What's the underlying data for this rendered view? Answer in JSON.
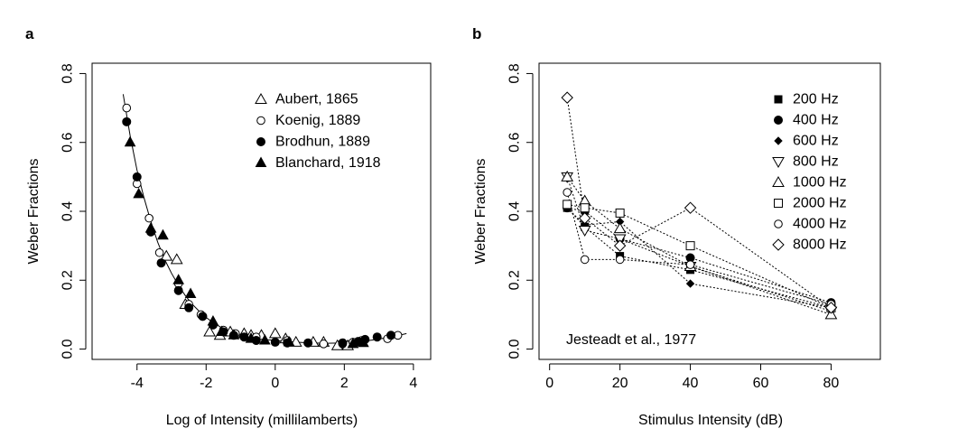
{
  "chart_data": [
    {
      "panel_label": "a",
      "type": "scatter",
      "xlabel": "Log of Intensity (millilamberts)",
      "ylabel": "Weber Fractions",
      "xlim": [
        -5.3,
        4.5
      ],
      "ylim": [
        -0.03,
        0.83
      ],
      "xticks": [
        -4,
        -2,
        0,
        2,
        4
      ],
      "xtick_labels": [
        "-4",
        "-2",
        "0",
        "2",
        "4"
      ],
      "yticks": [
        0.0,
        0.2,
        0.4,
        0.6,
        0.8
      ],
      "ytick_labels": [
        "0.0",
        "0.2",
        "0.4",
        "0.6",
        "0.8"
      ],
      "grid": false,
      "legend_position": "top-right",
      "series": [
        {
          "name": "Aubert, 1865",
          "marker": "triangle-open",
          "points": [
            [
              -3.15,
              0.27
            ],
            [
              -2.85,
              0.26
            ],
            [
              -2.6,
              0.13
            ],
            [
              -1.9,
              0.05
            ],
            [
              -1.6,
              0.04
            ],
            [
              -1.3,
              0.05
            ],
            [
              -0.9,
              0.045
            ],
            [
              -0.7,
              0.04
            ],
            [
              -0.4,
              0.04
            ],
            [
              0.0,
              0.045
            ],
            [
              0.3,
              0.03
            ],
            [
              0.6,
              0.02
            ],
            [
              1.1,
              0.02
            ],
            [
              1.4,
              0.02
            ],
            [
              1.8,
              0.01
            ],
            [
              2.1,
              0.01
            ]
          ]
        },
        {
          "name": "Koenig, 1889",
          "marker": "circle-open",
          "points": [
            [
              -4.3,
              0.7
            ],
            [
              -4.0,
              0.48
            ],
            [
              -3.65,
              0.38
            ],
            [
              -3.35,
              0.28
            ],
            [
              -2.8,
              0.19
            ],
            [
              -2.5,
              0.13
            ],
            [
              -2.15,
              0.1
            ],
            [
              -1.5,
              0.055
            ],
            [
              -1.15,
              0.045
            ],
            [
              -0.55,
              0.035
            ],
            [
              0.35,
              0.025
            ],
            [
              1.4,
              0.015
            ],
            [
              1.95,
              0.015
            ],
            [
              2.25,
              0.02
            ],
            [
              2.5,
              0.025
            ],
            [
              3.25,
              0.03
            ],
            [
              3.55,
              0.04
            ]
          ]
        },
        {
          "name": "Brodhun, 1889",
          "marker": "circle-filled",
          "points": [
            [
              -4.3,
              0.66
            ],
            [
              -4.0,
              0.5
            ],
            [
              -3.6,
              0.34
            ],
            [
              -3.3,
              0.25
            ],
            [
              -2.8,
              0.17
            ],
            [
              -2.5,
              0.12
            ],
            [
              -2.1,
              0.095
            ],
            [
              -1.8,
              0.07
            ],
            [
              -1.5,
              0.05
            ],
            [
              -1.2,
              0.04
            ],
            [
              -0.9,
              0.035
            ],
            [
              -0.55,
              0.025
            ],
            [
              0.0,
              0.02
            ],
            [
              0.35,
              0.018
            ],
            [
              0.95,
              0.018
            ],
            [
              1.95,
              0.018
            ],
            [
              2.4,
              0.022
            ],
            [
              2.6,
              0.028
            ],
            [
              2.95,
              0.035
            ],
            [
              3.35,
              0.04
            ]
          ]
        },
        {
          "name": "Blanchard, 1918",
          "marker": "triangle-filled",
          "points": [
            [
              -4.2,
              0.6
            ],
            [
              -3.95,
              0.45
            ],
            [
              -3.6,
              0.35
            ],
            [
              -3.25,
              0.33
            ],
            [
              -2.8,
              0.2
            ],
            [
              -2.45,
              0.16
            ],
            [
              -1.8,
              0.08
            ],
            [
              -1.55,
              0.05
            ],
            [
              -1.2,
              0.04
            ],
            [
              -0.7,
              0.03
            ],
            [
              -0.3,
              0.025
            ],
            [
              0.4,
              0.02
            ],
            [
              2.25,
              0.015
            ],
            [
              2.55,
              0.018
            ]
          ]
        }
      ],
      "fit_curve": {
        "style": "solid",
        "points": [
          [
            -4.4,
            0.74
          ],
          [
            -4.2,
            0.62
          ],
          [
            -4.0,
            0.52
          ],
          [
            -3.8,
            0.44
          ],
          [
            -3.6,
            0.37
          ],
          [
            -3.4,
            0.31
          ],
          [
            -3.2,
            0.26
          ],
          [
            -3.0,
            0.22
          ],
          [
            -2.8,
            0.185
          ],
          [
            -2.6,
            0.155
          ],
          [
            -2.4,
            0.13
          ],
          [
            -2.2,
            0.11
          ],
          [
            -2.0,
            0.092
          ],
          [
            -1.8,
            0.077
          ],
          [
            -1.6,
            0.065
          ],
          [
            -1.4,
            0.056
          ],
          [
            -1.2,
            0.048
          ],
          [
            -1.0,
            0.042
          ],
          [
            -0.8,
            0.037
          ],
          [
            -0.5,
            0.031
          ],
          [
            -0.2,
            0.027
          ],
          [
            0.2,
            0.023
          ],
          [
            0.6,
            0.02
          ],
          [
            1.0,
            0.018
          ],
          [
            1.5,
            0.017
          ],
          [
            2.0,
            0.018
          ],
          [
            2.5,
            0.022
          ],
          [
            3.0,
            0.029
          ],
          [
            3.5,
            0.038
          ],
          [
            3.8,
            0.045
          ]
        ]
      }
    },
    {
      "panel_label": "b",
      "type": "line",
      "xlabel": "Stimulus Intensity (dB)",
      "ylabel": "Weber Fractions",
      "annotation": "Jesteadt et al., 1977",
      "xlim": [
        -3,
        94
      ],
      "ylim": [
        -0.03,
        0.83
      ],
      "xticks": [
        0,
        20,
        40,
        60,
        80
      ],
      "xtick_labels": [
        "0",
        "20",
        "40",
        "60",
        "80"
      ],
      "yticks": [
        0.0,
        0.2,
        0.4,
        0.6,
        0.8
      ],
      "ytick_labels": [
        "0.0",
        "0.2",
        "0.4",
        "0.6",
        "0.8"
      ],
      "grid": false,
      "legend_position": "top-right",
      "x": [
        5,
        10,
        20,
        40,
        80
      ],
      "series": [
        {
          "name": "200 Hz",
          "marker": "square-filled",
          "values": [
            0.41,
            0.355,
            0.27,
            0.23,
            0.12
          ]
        },
        {
          "name": "400 Hz",
          "marker": "circle-filled",
          "values": [
            0.41,
            0.4,
            0.32,
            0.265,
            0.135
          ]
        },
        {
          "name": "600 Hz",
          "marker": "diamond-filled-small",
          "values": [
            0.41,
            0.36,
            0.37,
            0.19,
            0.12
          ]
        },
        {
          "name": "800 Hz",
          "marker": "triangle-down-open",
          "values": [
            0.5,
            0.345,
            0.32,
            0.24,
            0.11
          ]
        },
        {
          "name": "1000 Hz",
          "marker": "triangle-open",
          "values": [
            0.5,
            0.43,
            0.35,
            0.24,
            0.1
          ]
        },
        {
          "name": "2000 Hz",
          "marker": "square-open",
          "values": [
            0.42,
            0.41,
            0.395,
            0.3,
            0.12
          ]
        },
        {
          "name": "4000 Hz",
          "marker": "circle-open",
          "values": [
            0.455,
            0.26,
            0.26,
            0.245,
            0.13
          ]
        },
        {
          "name": "8000 Hz",
          "marker": "diamond-open",
          "values": [
            0.73,
            0.38,
            0.3,
            0.41,
            0.12
          ]
        }
      ]
    }
  ]
}
